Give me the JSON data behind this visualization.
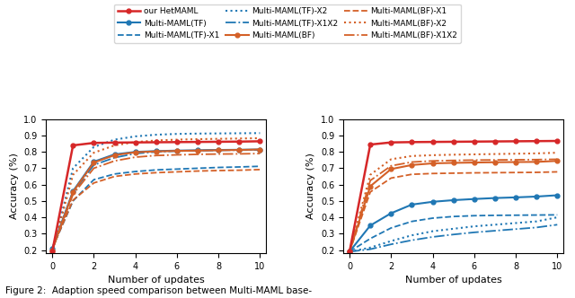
{
  "x": [
    0,
    1,
    2,
    3,
    4,
    5,
    6,
    7,
    8,
    9,
    10
  ],
  "red": "#d62728",
  "blue": "#1f77b4",
  "orange": "#d46027",
  "left": {
    "HetMAML": [
      0.19,
      0.84,
      0.855,
      0.857,
      0.858,
      0.859,
      0.86,
      0.861,
      0.862,
      0.863,
      0.865
    ],
    "TF": [
      0.21,
      0.56,
      0.74,
      0.785,
      0.8,
      0.805,
      0.808,
      0.81,
      0.812,
      0.813,
      0.815
    ],
    "TF_X1": [
      0.21,
      0.5,
      0.63,
      0.665,
      0.68,
      0.69,
      0.695,
      0.7,
      0.705,
      0.708,
      0.712
    ],
    "TF_X2": [
      0.19,
      0.7,
      0.83,
      0.875,
      0.895,
      0.905,
      0.91,
      0.912,
      0.913,
      0.914,
      0.915
    ],
    "TF_X1X2": [
      0.2,
      0.55,
      0.72,
      0.765,
      0.79,
      0.8,
      0.805,
      0.808,
      0.81,
      0.811,
      0.812
    ],
    "BF": [
      0.2,
      0.555,
      0.735,
      0.78,
      0.798,
      0.803,
      0.806,
      0.808,
      0.81,
      0.812,
      0.815
    ],
    "BF_X1": [
      0.21,
      0.505,
      0.61,
      0.65,
      0.665,
      0.673,
      0.678,
      0.683,
      0.686,
      0.688,
      0.692
    ],
    "BF_X2": [
      0.19,
      0.66,
      0.795,
      0.84,
      0.86,
      0.87,
      0.875,
      0.878,
      0.88,
      0.882,
      0.884
    ],
    "BF_X1X2": [
      0.2,
      0.54,
      0.7,
      0.745,
      0.768,
      0.778,
      0.782,
      0.785,
      0.787,
      0.788,
      0.79
    ]
  },
  "right": {
    "HetMAML": [
      0.19,
      0.845,
      0.858,
      0.86,
      0.861,
      0.862,
      0.863,
      0.864,
      0.865,
      0.866,
      0.867
    ],
    "TF": [
      0.19,
      0.35,
      0.425,
      0.478,
      0.495,
      0.505,
      0.512,
      0.518,
      0.522,
      0.527,
      0.535
    ],
    "TF_X1": [
      0.19,
      0.27,
      0.335,
      0.375,
      0.395,
      0.405,
      0.41,
      0.412,
      0.413,
      0.414,
      0.415
    ],
    "TF_X2": [
      0.19,
      0.215,
      0.255,
      0.29,
      0.315,
      0.33,
      0.345,
      0.355,
      0.365,
      0.375,
      0.4
    ],
    "TF_X1X2": [
      0.19,
      0.205,
      0.235,
      0.26,
      0.28,
      0.295,
      0.308,
      0.318,
      0.328,
      0.338,
      0.355
    ],
    "BF": [
      0.19,
      0.59,
      0.695,
      0.72,
      0.73,
      0.733,
      0.735,
      0.737,
      0.738,
      0.739,
      0.745
    ],
    "BF_X1": [
      0.19,
      0.555,
      0.64,
      0.663,
      0.668,
      0.67,
      0.672,
      0.673,
      0.674,
      0.675,
      0.678
    ],
    "BF_X2": [
      0.19,
      0.66,
      0.755,
      0.775,
      0.78,
      0.783,
      0.785,
      0.787,
      0.789,
      0.791,
      0.795
    ],
    "BF_X1X2": [
      0.19,
      0.625,
      0.715,
      0.738,
      0.745,
      0.748,
      0.75,
      0.751,
      0.752,
      0.753,
      0.755
    ]
  },
  "ylabel": "Accuracy (%)",
  "xlabel": "Number of updates",
  "ylim": [
    0.18,
    1.0
  ],
  "yticks": [
    0.2,
    0.3,
    0.4,
    0.5,
    0.6,
    0.7,
    0.8,
    0.9,
    1.0
  ]
}
